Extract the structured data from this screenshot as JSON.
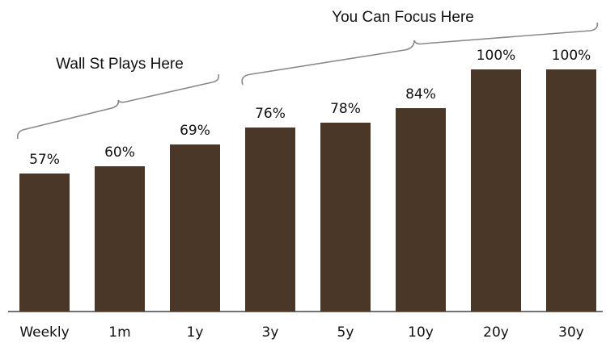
{
  "chart_data": {
    "type": "bar",
    "categories": [
      "Weekly",
      "1m",
      "1y",
      "3y",
      "5y",
      "10y",
      "20y",
      "30y"
    ],
    "values": [
      57,
      60,
      69,
      76,
      78,
      84,
      100,
      100
    ],
    "value_labels": [
      "57%",
      "60%",
      "69%",
      "76%",
      "78%",
      "84%",
      "100%",
      "100%"
    ],
    "color": "#4a3728",
    "annotations": [
      "Wall St Plays Here",
      "You Can Focus Here"
    ]
  }
}
